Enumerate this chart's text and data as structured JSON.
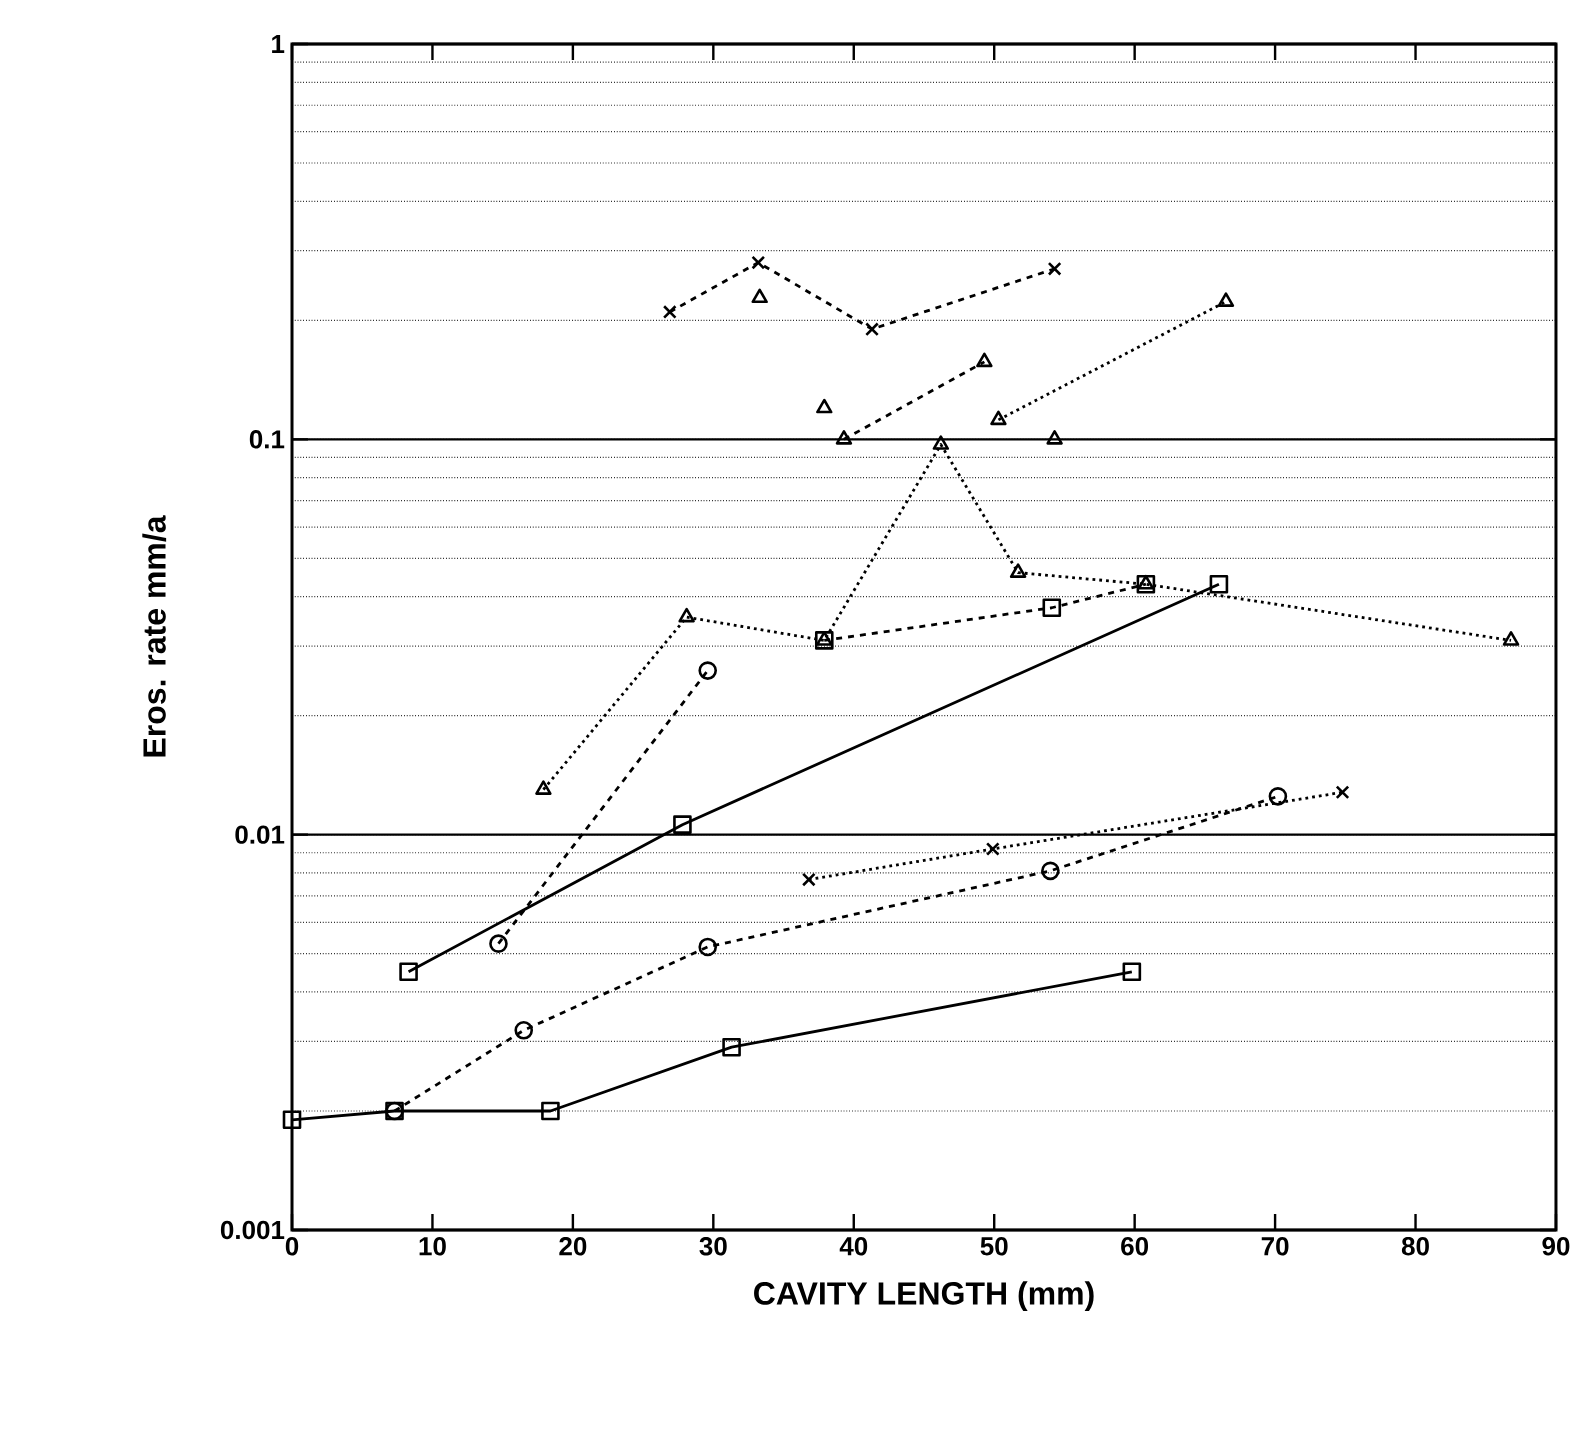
{
  "chart_data": {
    "type": "line",
    "xlabel": "CAVITY LENGTH (mm)",
    "ylabel": "Eros. rate mm/a",
    "xlim": [
      0,
      90
    ],
    "xticks": [
      0,
      10,
      20,
      30,
      40,
      50,
      60,
      70,
      80,
      90
    ],
    "ylim": [
      0.001,
      1
    ],
    "yticks": [
      0.001,
      0.01,
      0.1,
      1
    ],
    "log": "y",
    "grid": "y",
    "series": [
      {
        "color": "#000000",
        "marker": "square",
        "line_style": "solid",
        "x": [
          8.3,
          27.8,
          66
        ],
        "values": [
          0.0045,
          0.0106,
          0.043
        ]
      },
      {
        "color": "#000000",
        "marker": "square",
        "line_style": "solid",
        "x": [
          0,
          7.3,
          18.4,
          31.3,
          59.8
        ],
        "values": [
          0.0019,
          0.002,
          0.002,
          0.0029,
          0.0045
        ]
      },
      {
        "color": "#000000",
        "marker": "circle",
        "line_style": "dashed",
        "x": [
          7.3,
          16.5,
          29.6,
          54,
          70.2
        ],
        "values": [
          0.002,
          0.0032,
          0.0052,
          0.0081,
          0.0125
        ]
      },
      {
        "color": "#000000",
        "marker": "cross",
        "line_style": "dotted",
        "x": [
          36.8,
          49.9,
          74.8
        ],
        "values": [
          0.0077,
          0.0092,
          0.0128
        ]
      },
      {
        "color": "#000000",
        "marker": "circle",
        "line_style": "dashed",
        "x": [
          14.7,
          29.6
        ],
        "values": [
          0.0053,
          0.026
        ]
      },
      {
        "color": "#000000",
        "marker": "triangle",
        "line_style": "dotted",
        "x": [
          17.9,
          28.1,
          37.9,
          46.2,
          51.7,
          60.8,
          86.8
        ],
        "values": [
          0.013,
          0.0355,
          0.031,
          0.097,
          0.046,
          0.043,
          0.031
        ]
      },
      {
        "color": "#000000",
        "marker": "square",
        "line_style": "dashed",
        "x": [
          37.9,
          54.1,
          60.8
        ],
        "values": [
          0.031,
          0.0375,
          0.043
        ]
      },
      {
        "color": "#000000",
        "marker": "cross",
        "line_style": "dashed",
        "x": [
          26.9,
          33.2,
          41.3,
          54.3
        ],
        "values": [
          0.21,
          0.28,
          0.19,
          0.27
        ]
      },
      {
        "color": "#000000",
        "marker": "triangle",
        "line_style": "dashed",
        "x": [
          39.3,
          49.3
        ],
        "values": [
          0.1,
          0.157
        ]
      },
      {
        "color": "#000000",
        "marker": "triangle",
        "line_style": "dotted",
        "x": [
          50.3,
          66.5
        ],
        "values": [
          0.112,
          0.223
        ]
      },
      {
        "type": "scatter",
        "color": "#000000",
        "marker": "triangle",
        "x": [
          33.3,
          37.9,
          54.3
        ],
        "values": [
          0.228,
          0.12,
          0.1
        ]
      }
    ]
  }
}
